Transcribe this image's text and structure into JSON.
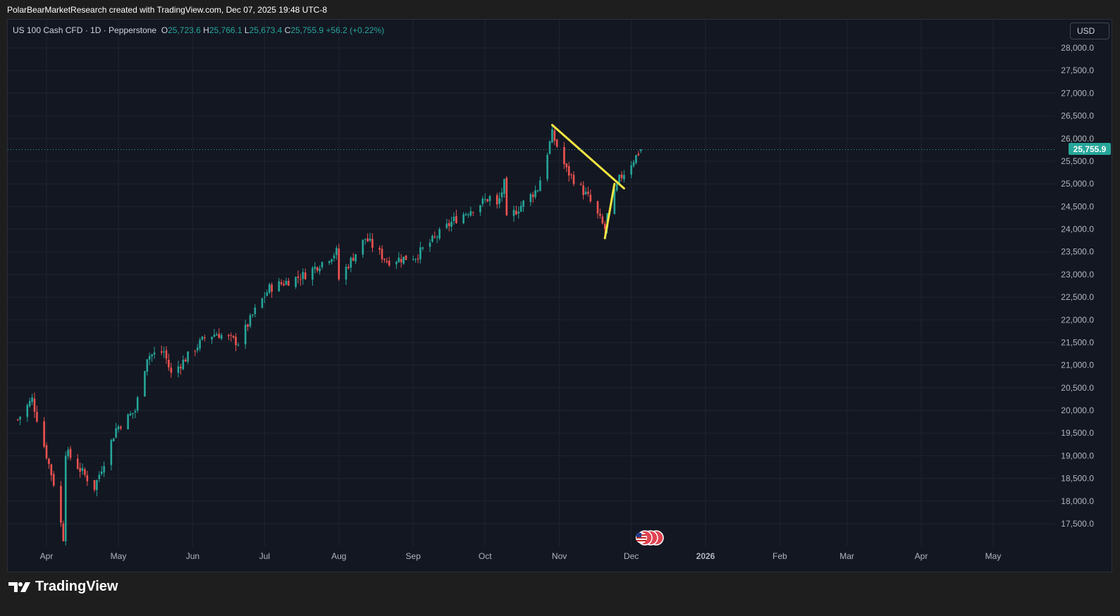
{
  "attribution": "PolarBearMarketResearch created with TradingView.com, Dec 07, 2025 19:48 UTC-8",
  "legend": {
    "symbol": "US 100 Cash CFD · 1D · Pepperstone",
    "open_label": "O",
    "open": "25,723.6",
    "high_label": "H",
    "high": "25,766.1",
    "low_label": "L",
    "low": "25,673.4",
    "close_label": "C",
    "close": "25,755.9",
    "change": "+56.2 (+0.22%)"
  },
  "currency": "USD",
  "brand": "TradingView",
  "colors": {
    "up": "#26a69a",
    "down": "#ef5350",
    "drawing": "#f5e642",
    "background": "#131722",
    "grid": "#1f2430"
  },
  "icons": {
    "event_marker": "us-flag-icon",
    "brand": "tradingview-logo-icon"
  },
  "chart_data": {
    "type": "candlestick",
    "ylim": [
      17000,
      28500
    ],
    "yticks": [
      "28,000.0",
      "27,500.0",
      "27,000.0",
      "26,500.0",
      "26,000.0",
      "25,500.0",
      "25,000.0",
      "24,500.0",
      "24,000.0",
      "23,500.0",
      "23,000.0",
      "22,500.0",
      "22,000.0",
      "21,500.0",
      "21,000.0",
      "20,500.0",
      "20,000.0",
      "19,500.0",
      "19,000.0",
      "18,500.0",
      "18,000.0",
      "17,500.0"
    ],
    "xticks": [
      "Apr",
      "May",
      "Jun",
      "Jul",
      "Aug",
      "Sep",
      "Oct",
      "Nov",
      "Dec",
      "2026",
      "Feb",
      "Mar",
      "Apr",
      "May"
    ],
    "last_price": 25755.9,
    "last_price_label": "25,755.9",
    "keypoints": [
      [
        19800,
        "2025-03-20"
      ],
      [
        20250,
        "2025-03-26"
      ],
      [
        18400,
        "2025-04-04"
      ],
      [
        17200,
        "2025-04-08"
      ],
      [
        19100,
        "2025-04-09"
      ],
      [
        18300,
        "2025-04-21"
      ],
      [
        19600,
        "2025-04-30"
      ],
      [
        20000,
        "2025-05-08"
      ],
      [
        21200,
        "2025-05-13"
      ],
      [
        21300,
        "2025-05-20"
      ],
      [
        20800,
        "2025-05-23"
      ],
      [
        21600,
        "2025-06-06"
      ],
      [
        21700,
        "2025-06-11"
      ],
      [
        21500,
        "2025-06-20"
      ],
      [
        22200,
        "2025-06-27"
      ],
      [
        22700,
        "2025-07-03"
      ],
      [
        23000,
        "2025-07-18"
      ],
      [
        23500,
        "2025-07-31"
      ],
      [
        22900,
        "2025-08-01"
      ],
      [
        23800,
        "2025-08-12"
      ],
      [
        23300,
        "2025-08-21"
      ],
      [
        23400,
        "2025-09-02"
      ],
      [
        24200,
        "2025-09-18"
      ],
      [
        24700,
        "2025-10-03"
      ],
      [
        24500,
        "2025-10-06"
      ],
      [
        25000,
        "2025-10-09"
      ],
      [
        24200,
        "2025-10-10"
      ],
      [
        24900,
        "2025-10-23"
      ],
      [
        26100,
        "2025-10-29"
      ],
      [
        25300,
        "2025-11-04"
      ],
      [
        24700,
        "2025-11-13"
      ],
      [
        24000,
        "2025-11-20"
      ],
      [
        24300,
        "2025-11-21"
      ],
      [
        25100,
        "2025-11-26"
      ],
      [
        25755.9,
        "2025-12-05"
      ]
    ],
    "annotations": [
      {
        "type": "trendline",
        "from": [
          "2025-10-29",
          26300
        ],
        "to": [
          "2025-11-28",
          24900
        ]
      },
      {
        "type": "trendline",
        "from": [
          "2025-11-20",
          23800
        ],
        "to": [
          "2025-11-24",
          25000
        ]
      }
    ]
  }
}
